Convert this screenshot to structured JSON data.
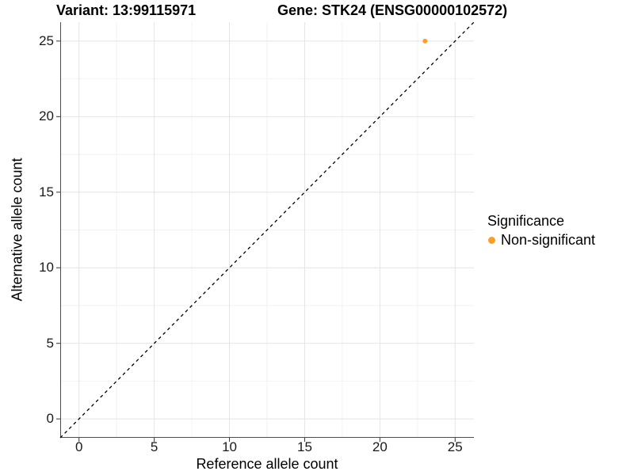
{
  "chart_data": {
    "type": "scatter",
    "title_left": "Variant: 13:99115971",
    "title_right": "Gene: STK24 (ENSG00000102572)",
    "xlabel": "Reference allele count",
    "ylabel": "Alternative allele count",
    "xlim": [
      -1.25,
      26.25
    ],
    "ylim": [
      -1.25,
      26.25
    ],
    "x_ticks": [
      0,
      5,
      10,
      15,
      20,
      25
    ],
    "y_ticks": [
      0,
      5,
      10,
      15,
      20,
      25
    ],
    "x_minor_gridlines": [
      2.5,
      7.5,
      12.5,
      17.5,
      22.5
    ],
    "y_minor_gridlines": [
      2.5,
      7.5,
      12.5,
      17.5,
      22.5
    ],
    "grid": "on",
    "series": [
      {
        "name": "Non-significant",
        "color": "#FB9E26",
        "points": [
          {
            "x": 23,
            "y": 25
          }
        ]
      }
    ],
    "reference_line": {
      "kind": "identity y=x",
      "x": [
        -1.25,
        26.25
      ],
      "y": [
        -1.25,
        26.25
      ],
      "style": "dashed",
      "color": "#000000"
    },
    "legend": {
      "title": "Significance",
      "position": "right",
      "entries": [
        {
          "label": "Non-significant",
          "color": "#FB9E26"
        }
      ]
    }
  },
  "colors": {
    "background": "#FFFFFF",
    "grid_major": "#E4E4E4",
    "grid_minor": "#F2F2F2",
    "axis_line": "#4D4D4D",
    "tick_mark": "#333333",
    "tick_label": "#1A1A1A"
  }
}
